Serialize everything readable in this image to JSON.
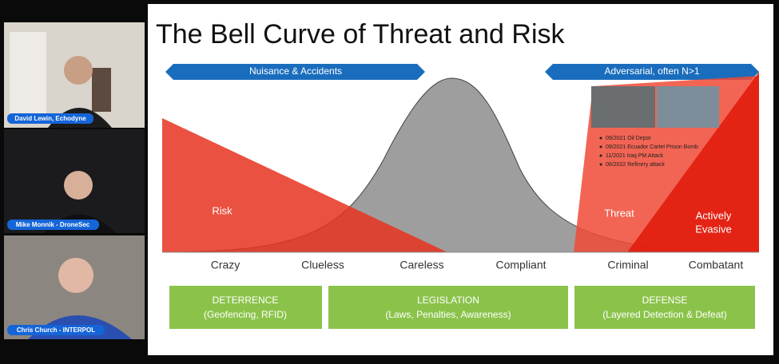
{
  "participants": [
    {
      "name": "David Lewin, Echodyne"
    },
    {
      "name": "Mike Monnik - DroneSec"
    },
    {
      "name": "Chris Church - INTERPOL"
    }
  ],
  "slide": {
    "title": "The Bell Curve of Threat and Risk",
    "banners": [
      "Nuisance & Accidents",
      "Adversarial, often N>1"
    ],
    "labels": {
      "risk": "Risk",
      "threat": "Threat",
      "evasive": [
        "Actively",
        "Evasive"
      ]
    },
    "incidents": [
      "09/2021 Oil Depot",
      "09/2021 Ecuador Cartel Prison Bomb",
      "11/2021 Iraq PM Attack",
      "06/2022 Refinery attack"
    ],
    "scale": [
      "Crazy",
      "Clueless",
      "Careless",
      "Compliant",
      "Criminal",
      "Combatant"
    ],
    "boxes": [
      {
        "title": "DETERRENCE",
        "subtitle": "(Geofencing, RFID)"
      },
      {
        "title": "LEGISLATION",
        "subtitle": "(Laws, Penalties, Awareness)"
      },
      {
        "title": "DEFENSE",
        "subtitle": "(Layered Detection & Defeat)"
      }
    ]
  }
}
